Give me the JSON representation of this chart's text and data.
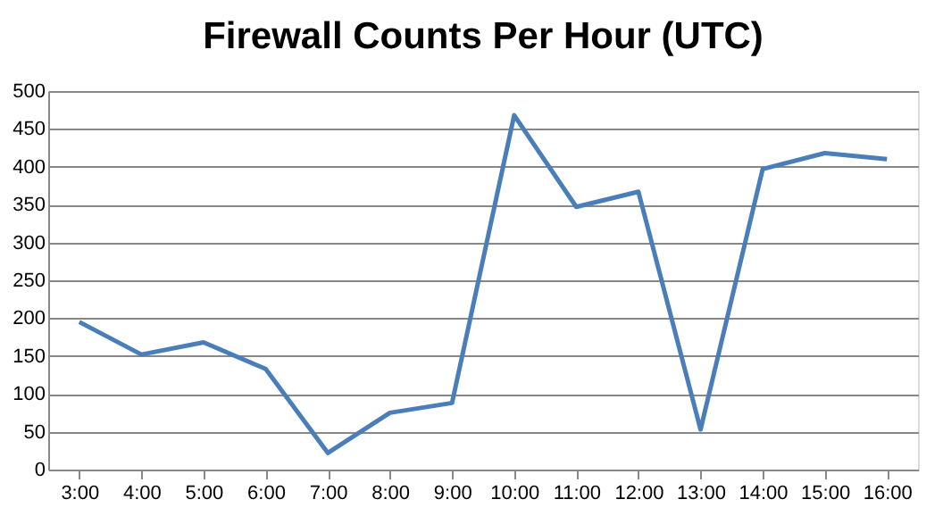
{
  "chart_data": {
    "type": "line",
    "title": "Firewall Counts Per Hour (UTC)",
    "categories": [
      "3:00",
      "4:00",
      "5:00",
      "6:00",
      "7:00",
      "8:00",
      "9:00",
      "10:00",
      "11:00",
      "12:00",
      "13:00",
      "14:00",
      "15:00",
      "16:00"
    ],
    "series": [
      {
        "color": "#4a7ebb",
        "values": [
          195,
          152,
          168,
          133,
          22,
          75,
          88,
          468,
          347,
          367,
          53,
          397,
          418,
          410
        ]
      }
    ],
    "ylim": [
      0,
      500
    ],
    "yticks": [
      0,
      50,
      100,
      150,
      200,
      250,
      300,
      350,
      400,
      450,
      500
    ],
    "grid": "y",
    "legend": false,
    "marker": "none",
    "line_style": "solid"
  }
}
